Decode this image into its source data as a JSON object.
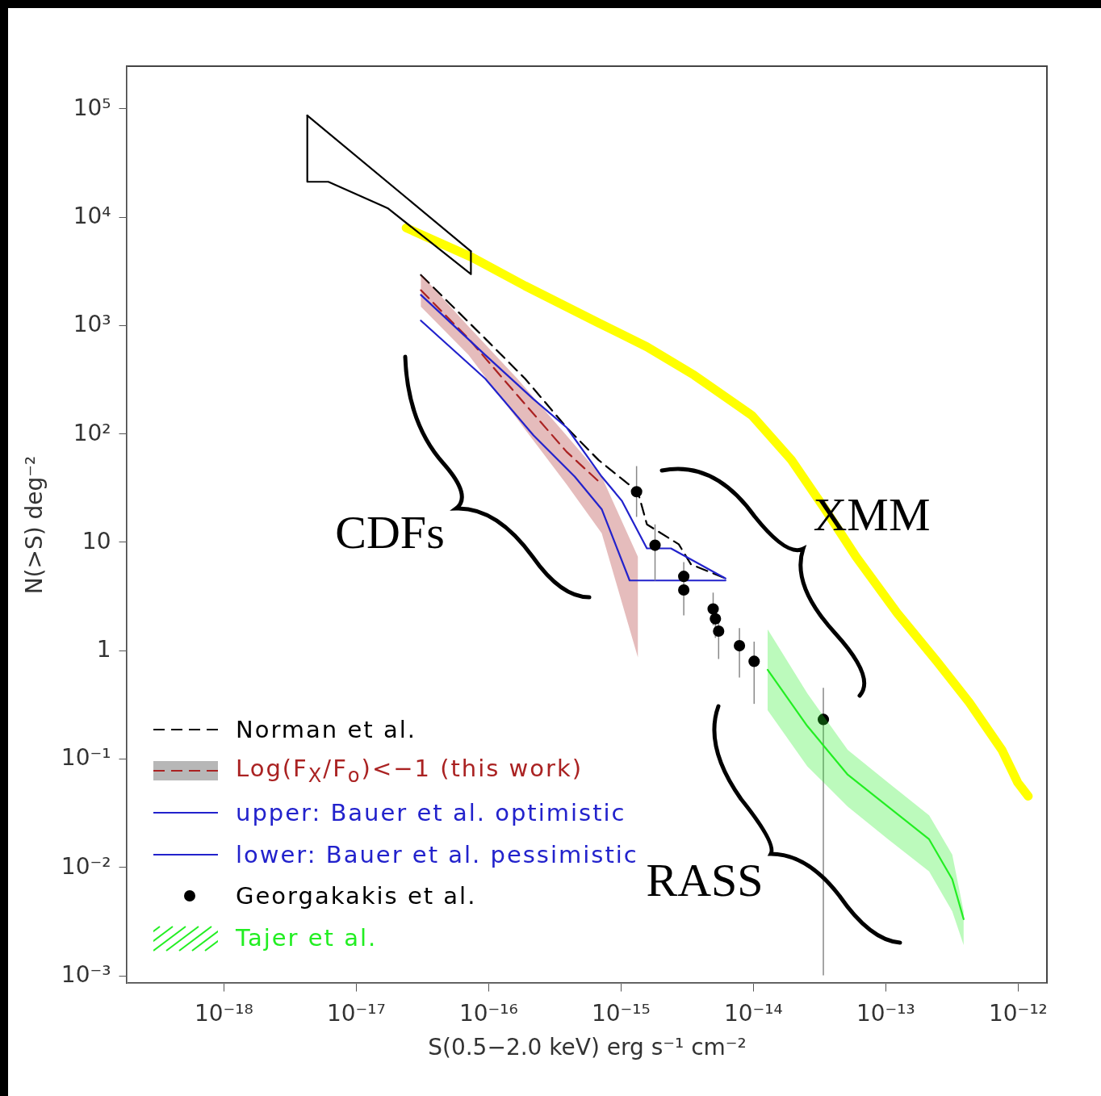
{
  "chart_data": {
    "type": "line",
    "xlabel": "S(0.5−2.0 keV)    erg s⁻¹ cm⁻²",
    "ylabel": "N(>S)    deg⁻²",
    "log": "xy",
    "grid": false,
    "legend": "bottom left",
    "xlim": [
      1.86e-19,
      1.66e-12
    ],
    "ylim": [
      0.00085,
      245000
    ],
    "xticks": [
      {
        "value": 1e-18,
        "label": "10⁻¹⁸"
      },
      {
        "value": 1e-17,
        "label": "10⁻¹⁷"
      },
      {
        "value": 1e-16,
        "label": "10⁻¹⁶"
      },
      {
        "value": 1e-15,
        "label": "10⁻¹⁵"
      },
      {
        "value": 1e-14,
        "label": "10⁻¹⁴"
      },
      {
        "value": 1e-13,
        "label": "10⁻¹³"
      },
      {
        "value": 1e-12,
        "label": "10⁻¹²"
      }
    ],
    "yticks": [
      {
        "value": 0.001,
        "label": "10⁻³"
      },
      {
        "value": 0.01,
        "label": "10⁻²"
      },
      {
        "value": 0.1,
        "label": "10⁻¹"
      },
      1,
      10,
      {
        "value": 100,
        "label": "10²"
      },
      {
        "value": 1000,
        "label": "10³"
      },
      {
        "value": 10000,
        "label": "10⁴"
      },
      {
        "value": 100000,
        "label": "10⁵"
      }
    ],
    "annotations": [
      "CDFs",
      "XMM",
      "RASS"
    ],
    "series": [
      {
        "type": "line",
        "color": "#ffff00",
        "x": [
          2.4e-17,
          7.6e-17,
          1.9e-16,
          6.8e-16,
          1.58e-15,
          3.6e-15,
          9.8e-15,
          1.95e-14,
          3.5e-14,
          6e-14,
          1.23e-13,
          2.45e-13,
          4.3e-13,
          7.6e-13,
          1e-12,
          1.2e-12
        ],
        "values": [
          7900,
          4200,
          2300,
          1050,
          630,
          345,
          147,
          57,
          20,
          7.3,
          2.2,
          0.79,
          0.33,
          0.12,
          0.06,
          0.045
        ]
      },
      {
        "type": "line",
        "color": "#000000",
        "x": [
          4.3e-18,
          4.3e-18,
          6.2e-18,
          1.74e-17,
          7.4e-17,
          7.4e-17
        ],
        "values": [
          86000,
          21000,
          21000,
          12000,
          2950,
          4800
        ]
      },
      {
        "type": "line",
        "color": "#000000",
        "x": [
          4.3e-18,
          7.4e-17
        ],
        "values": [
          86000,
          4800
        ]
      },
      {
        "name": "Norman et al.",
        "type": "line",
        "line_style": "dashed",
        "color": "#000000",
        "x": [
          3.1e-17,
          9.5e-17,
          1.9e-16,
          3.9e-16,
          6.8e-16,
          1.35e-15,
          1.58e-15,
          2.75e-15,
          3.4e-15,
          6.2e-15
        ],
        "values": [
          2900,
          750,
          320,
          114,
          57,
          29,
          14.5,
          9.5,
          6.2,
          4.6
        ]
      },
      {
        "name": "Log(F$_{X}$/F$_{o}$)<−1 (this work)",
        "type": "line",
        "line_style": "dashed",
        "color": "#aa2222",
        "x": [
          3.1e-17,
          7.1e-17,
          1.66e-16,
          3.9e-16,
          7.2e-16,
          1.35e-15
        ],
        "values": [
          2100,
          750,
          225,
          68,
          34,
          null
        ],
        "lower": [
          1480,
          530,
          135,
          34,
          12,
          0.86
        ],
        "upper": [
          2950,
          970,
          320,
          96,
          40,
          7.3
        ]
      },
      {
        "name": "upper: Bauer et al. optimistic",
        "type": "line",
        "color": "#2222cc",
        "x": [
          3.1e-17,
          9.5e-17,
          2.2e-16,
          3.9e-16,
          7.2e-16,
          1.02e-15,
          1.58e-15,
          2.4e-15,
          6.2e-15
        ],
        "values": [
          1900,
          530,
          207,
          114,
          40,
          24,
          8.7,
          8.7,
          4.6
        ]
      },
      {
        "name": "lower: Bauer et al. pessimistic",
        "type": "line",
        "color": "#2222cc",
        "x": [
          3.1e-17,
          9.5e-17,
          2.2e-16,
          4.5e-16,
          7.2e-16,
          1.17e-15,
          6.2e-15
        ],
        "values": [
          1100,
          320,
          96,
          40,
          20,
          4.4,
          4.4
        ]
      },
      {
        "name": "Georgakakis et al.",
        "type": "scatter",
        "marker": "circle",
        "color": "#000000",
        "x": [
          1.32e-15,
          1.82e-15,
          3e-15,
          3e-15,
          5e-15,
          5.2e-15,
          5.5e-15,
          7.9e-15,
          1.02e-14,
          3.4e-14
        ],
        "values": [
          29,
          9.3,
          4.8,
          3.6,
          2.4,
          1.95,
          1.5,
          1.1,
          0.79,
          0.23
        ],
        "errors": [
          [
            17,
            50
          ],
          [
            4.4,
            14.5
          ],
          [
            3.4,
            6.5
          ],
          [
            2.1,
            3.6
          ],
          [
            1.7,
            3.4
          ],
          [
            1.3,
            2.6
          ],
          [
            0.83,
            2.0
          ],
          [
            0.56,
            1.6
          ],
          [
            0.32,
            1.2
          ],
          [
            0.001,
            0.45
          ]
        ]
      },
      {
        "name": "Tajer et al.",
        "type": "line",
        "color": "#22ee22",
        "x": [
          1.29e-14,
          2.57e-14,
          5.2e-14,
          1.05e-13,
          2.14e-13,
          3.2e-13,
          3.9e-13
        ],
        "values": [
          0.66,
          0.2,
          0.071,
          0.036,
          0.018,
          0.0077,
          0.0033
        ],
        "lower": [
          0.28,
          0.085,
          0.036,
          0.018,
          0.0091,
          0.0039,
          0.0019
        ],
        "upper": [
          1.56,
          0.4,
          0.12,
          0.06,
          0.03,
          0.013,
          0.0039
        ]
      }
    ]
  }
}
